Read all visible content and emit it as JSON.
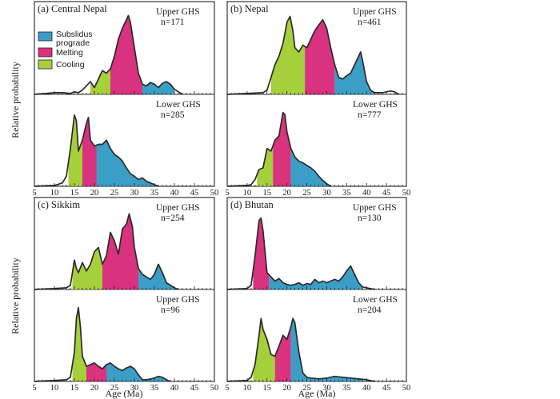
{
  "figure": {
    "ylabel": "Relative probability",
    "xlabel": "Age (Ma)",
    "legend": [
      {
        "label": "Subslidus",
        "label2": "prograde",
        "color": "#3a9ec6"
      },
      {
        "label": "Melting",
        "color": "#d9327f"
      },
      {
        "label": "Cooling",
        "color": "#a6cf3c"
      }
    ]
  },
  "chart_data": [
    {
      "type": "area",
      "panel": "(a) Central Nepal",
      "xlim": [
        5,
        50
      ],
      "xticks": [
        5,
        10,
        15,
        20,
        25,
        30,
        35,
        40,
        45,
        50
      ],
      "subplots": [
        {
          "label": "Upper GHS",
          "n": "n=171",
          "ymax": 1.0,
          "segments": [
            {
              "phase": "Cooling",
              "color": "#a6cf3c",
              "from": 19,
              "to": 24
            },
            {
              "phase": "Melting",
              "color": "#d9327f",
              "from": 24,
              "to": 32
            },
            {
              "phase": "Subslidus prograde",
              "color": "#3a9ec6",
              "from": 32,
              "to": 40
            }
          ],
          "curve": {
            "x": [
              5,
              8,
              10,
              12,
              14,
              15,
              16,
              17,
              18,
              19,
              20,
              21,
              22,
              23,
              24,
              25,
              26,
              27,
              28,
              28.5,
              29,
              30,
              31,
              32,
              33,
              34,
              35,
              36,
              37,
              38,
              39,
              40,
              41,
              42
            ],
            "y": [
              0,
              0.01,
              0.02,
              0.02,
              0.01,
              0.03,
              0.02,
              0.05,
              0.1,
              0.15,
              0.08,
              0.18,
              0.28,
              0.25,
              0.3,
              0.45,
              0.65,
              0.78,
              0.88,
              0.93,
              0.85,
              0.55,
              0.25,
              0.12,
              0.1,
              0.14,
              0.12,
              0.08,
              0.13,
              0.15,
              0.12,
              0.06,
              0.03,
              0
            ]
          }
        },
        {
          "label": "Lower GHS",
          "n": "n=285",
          "ymax": 1.0,
          "segments": [
            {
              "phase": "Cooling",
              "color": "#a6cf3c",
              "from": 13.5,
              "to": 17
            },
            {
              "phase": "Melting",
              "color": "#d9327f",
              "from": 17,
              "to": 20.5
            },
            {
              "phase": "Subslidus prograde",
              "color": "#3a9ec6",
              "from": 20.5,
              "to": 36
            }
          ],
          "curve": {
            "x": [
              5,
              10,
              12,
              13,
              14,
              15,
              15.5,
              16,
              17,
              18,
              18.5,
              19,
              20,
              21,
              22,
              23,
              24,
              25,
              26,
              27,
              28,
              29,
              30,
              31,
              32,
              33,
              34,
              35,
              36
            ],
            "y": [
              0,
              0.01,
              0.04,
              0.12,
              0.45,
              0.85,
              0.78,
              0.42,
              0.55,
              0.75,
              0.82,
              0.55,
              0.48,
              0.5,
              0.5,
              0.55,
              0.45,
              0.38,
              0.35,
              0.3,
              0.22,
              0.15,
              0.12,
              0.08,
              0.1,
              0.06,
              0.04,
              0.02,
              0
            ]
          }
        }
      ]
    },
    {
      "type": "area",
      "panel": "(b) Nepal",
      "xlim": [
        5,
        50
      ],
      "xticks": [
        5,
        10,
        15,
        20,
        25,
        30,
        35,
        40,
        45,
        50
      ],
      "subplots": [
        {
          "label": "Upper GHS",
          "n": "n=461",
          "ymax": 1.0,
          "segments": [
            {
              "phase": "Cooling",
              "color": "#a6cf3c",
              "from": 16,
              "to": 24.5
            },
            {
              "phase": "Melting",
              "color": "#d9327f",
              "from": 24.5,
              "to": 32
            },
            {
              "phase": "Subslidus prograde",
              "color": "#3a9ec6",
              "from": 32,
              "to": 42
            }
          ],
          "curve": {
            "x": [
              5,
              10,
              14,
              15,
              16,
              17,
              18,
              19,
              20,
              20.8,
              21.5,
              22,
              23,
              24,
              25,
              26,
              27,
              28,
              29,
              30,
              31,
              32,
              33,
              34,
              35,
              36,
              37,
              38,
              38.5,
              39,
              40,
              41,
              42,
              44,
              46,
              47,
              48
            ],
            "y": [
              0,
              0.01,
              0.02,
              0.05,
              0.2,
              0.35,
              0.45,
              0.6,
              0.85,
              0.92,
              0.75,
              0.55,
              0.5,
              0.58,
              0.55,
              0.65,
              0.75,
              0.82,
              0.88,
              0.78,
              0.55,
              0.35,
              0.2,
              0.18,
              0.22,
              0.25,
              0.35,
              0.45,
              0.5,
              0.4,
              0.15,
              0.05,
              0.02,
              0.02,
              0.04,
              0.03,
              0
            ]
          }
        },
        {
          "label": "Lower GHS",
          "n": "n=777",
          "ymax": 1.0,
          "segments": [
            {
              "phase": "Cooling",
              "color": "#a6cf3c",
              "from": 12.5,
              "to": 16.5
            },
            {
              "phase": "Melting",
              "color": "#d9327f",
              "from": 16.5,
              "to": 21
            },
            {
              "phase": "Subslidus prograde",
              "color": "#3a9ec6",
              "from": 21,
              "to": 31
            }
          ],
          "curve": {
            "x": [
              5,
              10,
              11,
              12,
              13,
              14,
              15,
              16,
              17,
              18,
              19,
              19.5,
              20,
              21,
              22,
              23,
              24,
              25,
              26,
              27,
              28,
              29,
              30,
              31
            ],
            "y": [
              0,
              0.01,
              0.02,
              0.08,
              0.2,
              0.22,
              0.45,
              0.42,
              0.55,
              0.6,
              0.88,
              0.85,
              0.65,
              0.45,
              0.35,
              0.3,
              0.28,
              0.25,
              0.22,
              0.18,
              0.12,
              0.07,
              0.03,
              0
            ]
          }
        }
      ]
    },
    {
      "type": "area",
      "panel": "(c) Sikkim",
      "xlim": [
        5,
        50
      ],
      "xticks": [
        5,
        10,
        15,
        20,
        25,
        30,
        35,
        40,
        45,
        50
      ],
      "subplots": [
        {
          "label": "Upper GHS",
          "n": "n=254",
          "ymax": 1.0,
          "segments": [
            {
              "phase": "Cooling",
              "color": "#a6cf3c",
              "from": 14.5,
              "to": 22
            },
            {
              "phase": "Melting",
              "color": "#d9327f",
              "from": 22,
              "to": 31
            },
            {
              "phase": "Subslidus prograde",
              "color": "#3a9ec6",
              "from": 31,
              "to": 41
            }
          ],
          "curve": {
            "x": [
              5,
              10,
              13,
              14,
              15,
              15.5,
              16,
              17,
              18,
              19,
              20,
              21,
              22,
              23,
              24,
              25,
              26,
              27,
              28,
              28.7,
              29.5,
              30,
              31,
              32,
              33,
              34,
              35,
              36,
              37,
              38,
              39,
              40,
              41
            ],
            "y": [
              0,
              0.01,
              0.02,
              0.05,
              0.35,
              0.25,
              0.2,
              0.32,
              0.22,
              0.3,
              0.45,
              0.5,
              0.3,
              0.4,
              0.68,
              0.58,
              0.42,
              0.72,
              0.78,
              0.9,
              0.75,
              0.5,
              0.25,
              0.18,
              0.15,
              0.12,
              0.18,
              0.3,
              0.2,
              0.08,
              0.05,
              0.02,
              0
            ]
          }
        },
        {
          "label": "Upper GHS",
          "n": "n=96",
          "ymax": 1.0,
          "segments": [
            {
              "phase": "Cooling",
              "color": "#a6cf3c",
              "from": 14.5,
              "to": 18
            },
            {
              "phase": "Melting",
              "color": "#d9327f",
              "from": 18,
              "to": 23
            },
            {
              "phase": "Subslidus prograde",
              "color": "#3a9ec6",
              "from": 23,
              "to": 39
            }
          ],
          "curve": {
            "x": [
              5,
              10,
              13,
              14,
              15,
              15.5,
              16,
              16.5,
              17,
              18,
              19,
              20,
              21,
              22,
              23,
              24,
              25,
              26,
              27,
              28,
              29,
              30,
              31,
              32,
              33,
              34,
              35,
              36,
              37,
              38,
              39
            ],
            "y": [
              0,
              0.01,
              0.02,
              0.05,
              0.35,
              0.75,
              0.88,
              0.65,
              0.3,
              0.18,
              0.2,
              0.22,
              0.18,
              0.15,
              0.2,
              0.22,
              0.18,
              0.15,
              0.13,
              0.16,
              0.18,
              0.15,
              0.08,
              0.02,
              0.02,
              0.03,
              0.04,
              0.06,
              0.05,
              0.02,
              0
            ]
          }
        }
      ]
    },
    {
      "type": "area",
      "panel": "(d) Bhutan",
      "xlim": [
        5,
        50
      ],
      "xticks": [
        5,
        10,
        15,
        20,
        25,
        30,
        35,
        40,
        45,
        50
      ],
      "subplots": [
        {
          "label": "Upper GHS",
          "n": "n=130",
          "ymax": 1.0,
          "segments": [
            {
              "phase": "Melting",
              "color": "#d9327f",
              "from": 11.5,
              "to": 15.5
            },
            {
              "phase": "Subslidus prograde",
              "color": "#3a9ec6",
              "from": 15.5,
              "to": 39
            }
          ],
          "curve": {
            "x": [
              5,
              10,
              11,
              12,
              13,
              13.5,
              14,
              15,
              16,
              17,
              18,
              19,
              20,
              21,
              22,
              23,
              24,
              25,
              26,
              27,
              28,
              29,
              30,
              31,
              32,
              33,
              34,
              35,
              36,
              37,
              38,
              39,
              40,
              42
            ],
            "y": [
              0,
              0.01,
              0.05,
              0.4,
              0.82,
              0.85,
              0.7,
              0.2,
              0.15,
              0.1,
              0.13,
              0.08,
              0.06,
              0.05,
              0.06,
              0.08,
              0.05,
              0.07,
              0.06,
              0.12,
              0.08,
              0.1,
              0.08,
              0.1,
              0.12,
              0.1,
              0.15,
              0.22,
              0.28,
              0.18,
              0.08,
              0.03,
              0.02,
              0
            ]
          }
        },
        {
          "label": "Lower GHS",
          "n": "n=204",
          "ymax": 1.0,
          "segments": [
            {
              "phase": "Cooling",
              "color": "#a6cf3c",
              "from": 11.5,
              "to": 17
            },
            {
              "phase": "Melting",
              "color": "#d9327f",
              "from": 17,
              "to": 21
            },
            {
              "phase": "Subslidus prograde",
              "color": "#3a9ec6",
              "from": 21,
              "to": 39
            }
          ],
          "curve": {
            "x": [
              5,
              10,
              11,
              12,
              13,
              13.5,
              14,
              15,
              16,
              17,
              18,
              19,
              20,
              21,
              21.5,
              22,
              23,
              24,
              25,
              26,
              28,
              30,
              32,
              34,
              36,
              38,
              40,
              42
            ],
            "y": [
              0,
              0.01,
              0.05,
              0.2,
              0.55,
              0.75,
              0.62,
              0.5,
              0.32,
              0.3,
              0.42,
              0.55,
              0.5,
              0.65,
              0.75,
              0.7,
              0.35,
              0.1,
              0.05,
              0.04,
              0.03,
              0.04,
              0.06,
              0.05,
              0.04,
              0.03,
              0.02,
              0
            ]
          }
        }
      ]
    }
  ]
}
